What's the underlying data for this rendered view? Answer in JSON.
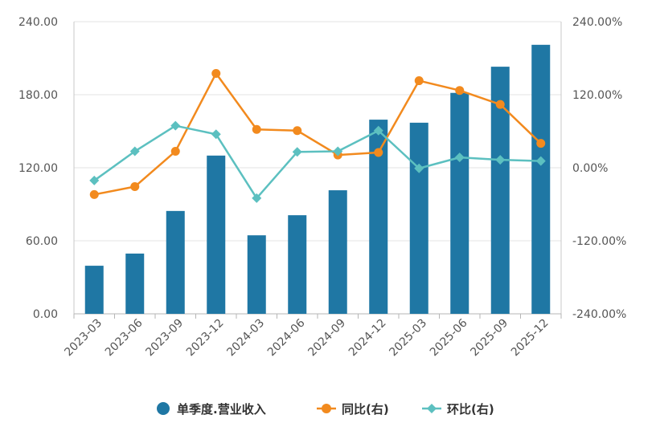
{
  "chart_data": {
    "type": "bar",
    "title": "",
    "categories": [
      "2023-03",
      "2023-06",
      "2023-09",
      "2023-12",
      "2024-03",
      "2024-06",
      "2024-09",
      "2024-12",
      "2025-03",
      "2025-06",
      "2025-09",
      "2025-12"
    ],
    "series": [
      {
        "name": "单季度.营业收入",
        "kind": "bar",
        "axis": "left",
        "color": "#1f77a4",
        "values": [
          39.5,
          49.5,
          84.5,
          130.0,
          64.5,
          81.0,
          101.5,
          159.5,
          157.0,
          181.5,
          203.0,
          221.0
        ]
      },
      {
        "name": "同比(右)",
        "kind": "line",
        "axis": "right",
        "color": "#f28a1e",
        "marker": "circle",
        "values": [
          -44.0,
          -31.0,
          27.0,
          155.0,
          63.0,
          61.0,
          21.0,
          25.0,
          143.0,
          127.0,
          104.0,
          40.0
        ]
      },
      {
        "name": "环比(右)",
        "kind": "line",
        "axis": "right",
        "color": "#5cc0c0",
        "marker": "diamond",
        "values": [
          -21.0,
          27.0,
          69.0,
          55.0,
          -50.0,
          26.0,
          27.0,
          61.0,
          -1.0,
          17.0,
          13.0,
          11.0
        ]
      }
    ],
    "y_left": {
      "ylim": [
        0,
        240
      ],
      "ticks": [
        0,
        60,
        120,
        180,
        240
      ],
      "tick_labels": [
        "0.00",
        "60.00",
        "120.00",
        "180.00",
        "240.00"
      ]
    },
    "y_right": {
      "ylim": [
        -240,
        240
      ],
      "ticks": [
        -240,
        -120,
        0,
        120,
        240
      ],
      "tick_labels": [
        "-240.00%",
        "-120.00%",
        "0.00%",
        "120.00%",
        "240.00%"
      ]
    },
    "grid": true,
    "legend": "bottom-center"
  }
}
